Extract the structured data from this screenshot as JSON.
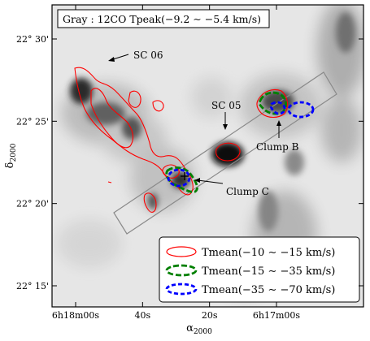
{
  "chart_data": {
    "type": "contour_map",
    "title": "Gray : 12CO Tpeak(−9.2 ∼ −5.4 km/s)",
    "xlabel": "α",
    "xlabel_sub": "2000",
    "ylabel": "δ",
    "ylabel_sub": "2000",
    "x_ticks": [
      {
        "label": "6h18m00s",
        "ra_s": 1080
      },
      {
        "label": "40s",
        "ra_s": 1060
      },
      {
        "label": "20s",
        "ra_s": 1040
      },
      {
        "label": "6h17m00s",
        "ra_s": 1020
      }
    ],
    "y_ticks": [
      {
        "label": "22° 30'",
        "dec_arcmin": 30
      },
      {
        "label": "22° 25'",
        "dec_arcmin": 25
      },
      {
        "label": "22° 20'",
        "dec_arcmin": 20
      },
      {
        "label": "22° 15'",
        "dec_arcmin": 15
      }
    ],
    "annotations": [
      {
        "name": "sc06",
        "text": "SC 06"
      },
      {
        "name": "sc05",
        "text": "SC 05"
      },
      {
        "name": "clump-b",
        "text": "Clump B"
      },
      {
        "name": "clump-c",
        "text": "Clump C"
      }
    ],
    "series": [
      {
        "name": "Tmean(−10 ∼ −15 km/s)",
        "color": "#ff0000",
        "dash": "solid"
      },
      {
        "name": "Tmean(−15 ∼ −35 km/s)",
        "color": "#008000",
        "dash": "dashed"
      },
      {
        "name": "Tmean(−35 ∼ −70 km/s)",
        "color": "#0000ff",
        "dash": "dashed"
      }
    ],
    "legend_position": "bottom-right",
    "colors": {
      "red": "#ff0000",
      "green": "#008000",
      "blue": "#0000ff",
      "background": "grayscale"
    }
  }
}
